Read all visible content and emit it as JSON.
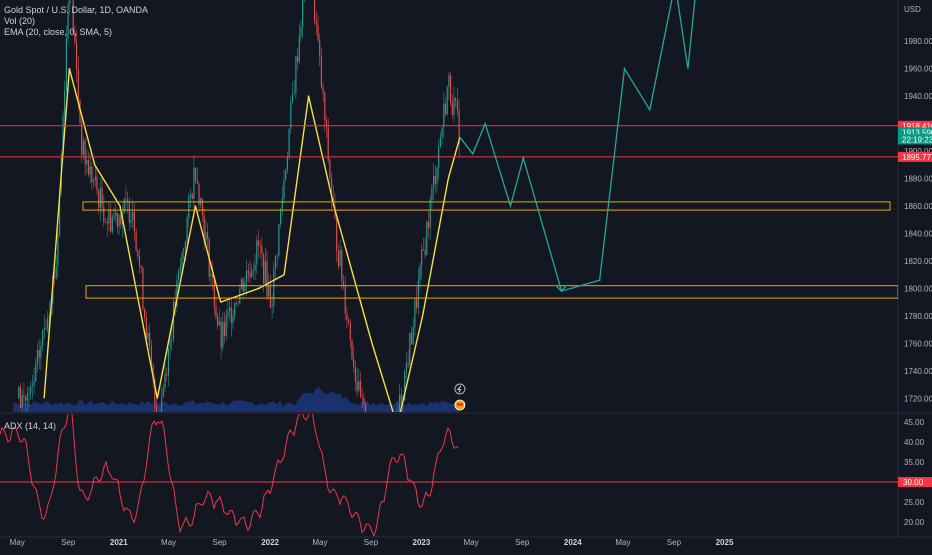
{
  "header": {
    "symbol_title": "Gold Spot / U.S. Dollar, 1D, OANDA",
    "vol_indicator": "Vol (20)",
    "ema_indicator": "EMA (20, close, 0, SMA, 5)",
    "adx_indicator": "ADX (14, 14)"
  },
  "colors": {
    "background": "#131722",
    "grid": "#1e222d",
    "candle_up": "#26a69a",
    "candle_down": "#ef5350",
    "ema_line": "#f5e23f",
    "projection_line": "#26a69a",
    "zone_border": "#f0a500",
    "horizontal_line": "#f23645",
    "adx_line": "#f23645",
    "volume_area": "#2962ff"
  },
  "icons": [
    "lightning-icon",
    "earnings-flag-icon"
  ],
  "chart_data": [
    {
      "type": "candlestick",
      "title": "Gold Spot / U.S. Dollar, 1D, OANDA",
      "currency_label": "USD",
      "x_tick_labels": [
        "May",
        "Sep",
        "2021",
        "May",
        "Sep",
        "2022",
        "May",
        "Sep",
        "2023",
        "May",
        "Sep",
        "2024",
        "May",
        "Sep",
        "2025"
      ],
      "y_tick_labels": [
        "1980.000",
        "1960.000",
        "1940.000",
        "1900.000",
        "1880.000",
        "1860.000",
        "1840.000",
        "1820.000",
        "1800.000",
        "1780.000",
        "1760.000",
        "1740.000",
        "1720.000"
      ],
      "ylim": [
        1710,
        2010
      ],
      "price_path_approx": [
        {
          "date": "2020-05",
          "close": 1720
        },
        {
          "date": "2020-07",
          "close": 1820
        },
        {
          "date": "2020-08",
          "close": 2030
        },
        {
          "date": "2020-09",
          "close": 1900
        },
        {
          "date": "2020-11",
          "close": 1850
        },
        {
          "date": "2021-01",
          "close": 1860
        },
        {
          "date": "2021-03",
          "close": 1700
        },
        {
          "date": "2021-06",
          "close": 1890
        },
        {
          "date": "2021-08",
          "close": 1760
        },
        {
          "date": "2021-09",
          "close": 1790
        },
        {
          "date": "2021-11",
          "close": 1830
        },
        {
          "date": "2021-12",
          "close": 1790
        },
        {
          "date": "2022-03",
          "close": 2050
        },
        {
          "date": "2022-05",
          "close": 1850
        },
        {
          "date": "2022-07",
          "close": 1720
        },
        {
          "date": "2022-09",
          "close": 1650
        },
        {
          "date": "2022-11",
          "close": 1760
        },
        {
          "date": "2023-02",
          "close": 1950
        },
        {
          "date": "2023-03",
          "close": 1913
        }
      ],
      "ema_path_approx": [
        {
          "date": "2020-06",
          "value": 1720
        },
        {
          "date": "2020-08",
          "value": 1960
        },
        {
          "date": "2020-10",
          "value": 1890
        },
        {
          "date": "2020-12",
          "value": 1860
        },
        {
          "date": "2021-03",
          "value": 1720
        },
        {
          "date": "2021-06",
          "value": 1860
        },
        {
          "date": "2021-08",
          "value": 1790
        },
        {
          "date": "2021-11",
          "value": 1800
        },
        {
          "date": "2022-01",
          "value": 1810
        },
        {
          "date": "2022-03",
          "value": 1940
        },
        {
          "date": "2022-05",
          "value": 1860
        },
        {
          "date": "2022-08",
          "value": 1760
        },
        {
          "date": "2022-10",
          "value": 1700
        },
        {
          "date": "2022-12",
          "value": 1780
        },
        {
          "date": "2023-02",
          "value": 1880
        },
        {
          "date": "2023-03",
          "value": 1910
        }
      ],
      "projection_path": [
        {
          "date": "2023-03",
          "value": 1910
        },
        {
          "date": "2023-04",
          "value": 1898
        },
        {
          "date": "2023-05",
          "value": 1920
        },
        {
          "date": "2023-07",
          "value": 1860
        },
        {
          "date": "2023-08",
          "value": 1895
        },
        {
          "date": "2023-11",
          "value": 1798
        },
        {
          "date": "2024-02",
          "value": 1806
        },
        {
          "date": "2024-04",
          "value": 1960
        },
        {
          "date": "2024-06",
          "value": 1930
        },
        {
          "date": "2024-08",
          "value": 2022
        },
        {
          "date": "2024-09",
          "value": 1960
        },
        {
          "date": "2024-10",
          "value": 2050
        }
      ],
      "horizontal_lines": [
        1918.416,
        1895.777
      ],
      "zones": [
        [
          1857,
          1863
        ],
        [
          1793,
          1802
        ]
      ],
      "price_labels": [
        {
          "text": "1918.416",
          "value": 1918.416,
          "color": "#f23645"
        },
        {
          "text": "1913.590",
          "value": 1913.59,
          "color": "#089981"
        },
        {
          "text": "22:19:23",
          "value": 1908.5,
          "color": "#089981"
        },
        {
          "text": "1895.777",
          "value": 1895.777,
          "color": "#f23645"
        }
      ],
      "current_price": 1913.59,
      "countdown": "22:19:23",
      "grid": false,
      "legend": "top-left"
    },
    {
      "type": "line",
      "title": "ADX (14, 14)",
      "y_tick_labels": [
        "45.00",
        "40.00",
        "35.00",
        "25.00",
        "20.00"
      ],
      "ylim": [
        16.5,
        47
      ],
      "threshold_line": 30,
      "threshold_label": "30.00",
      "adx_values_approx": [
        {
          "date": "2020-04",
          "value": 42
        },
        {
          "date": "2020-06",
          "value": 22
        },
        {
          "date": "2020-08",
          "value": 47
        },
        {
          "date": "2020-09",
          "value": 26
        },
        {
          "date": "2020-11",
          "value": 33
        },
        {
          "date": "2021-01",
          "value": 21
        },
        {
          "date": "2021-03",
          "value": 46
        },
        {
          "date": "2021-05",
          "value": 19
        },
        {
          "date": "2021-07",
          "value": 26
        },
        {
          "date": "2021-10",
          "value": 20
        },
        {
          "date": "2022-03",
          "value": 47
        },
        {
          "date": "2022-05",
          "value": 27
        },
        {
          "date": "2022-08",
          "value": 18
        },
        {
          "date": "2022-10",
          "value": 37
        },
        {
          "date": "2022-12",
          "value": 25
        },
        {
          "date": "2023-02",
          "value": 42
        },
        {
          "date": "2023-03",
          "value": 38
        }
      ],
      "legend": "top-left"
    }
  ]
}
